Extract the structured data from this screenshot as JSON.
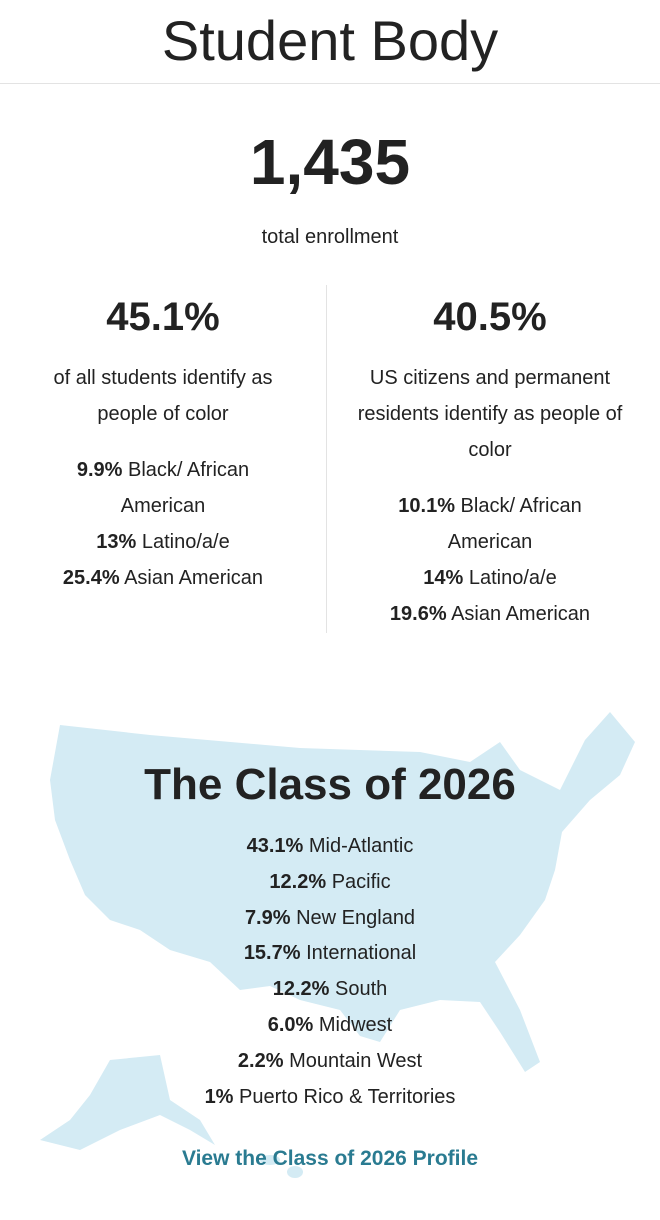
{
  "header": {
    "title": "Student Body"
  },
  "enrollment": {
    "number": "1,435",
    "label": "total enrollment"
  },
  "columns": [
    {
      "stat": "45.1%",
      "description": "of all students identify as people of color",
      "items": [
        {
          "value": "9.9%",
          "label": "Black/ African American"
        },
        {
          "value": "13%",
          "label": "Latino/a/e"
        },
        {
          "value": "25.4%",
          "label": "Asian American"
        }
      ]
    },
    {
      "stat": "40.5%",
      "description": "US citizens and permanent residents identify as people of color",
      "items": [
        {
          "value": "10.1%",
          "label": "Black/ African American"
        },
        {
          "value": "14%",
          "label": "Latino/a/e"
        },
        {
          "value": "19.6%",
          "label": "Asian American"
        }
      ]
    }
  ],
  "class": {
    "title": "The Class of 2026",
    "items": [
      {
        "value": "43.1%",
        "label": "Mid-Atlantic"
      },
      {
        "value": "12.2%",
        "label": "Pacific"
      },
      {
        "value": "7.9%",
        "label": "New England"
      },
      {
        "value": "15.7%",
        "label": "International"
      },
      {
        "value": "12.2%",
        "label": "South"
      },
      {
        "value": "6.0%",
        "label": "Midwest"
      },
      {
        "value": "2.2%",
        "label": "Mountain West"
      },
      {
        "value": "1%",
        "label": "Puerto Rico & Territories"
      }
    ],
    "link": "View the Class of 2026 Profile"
  }
}
